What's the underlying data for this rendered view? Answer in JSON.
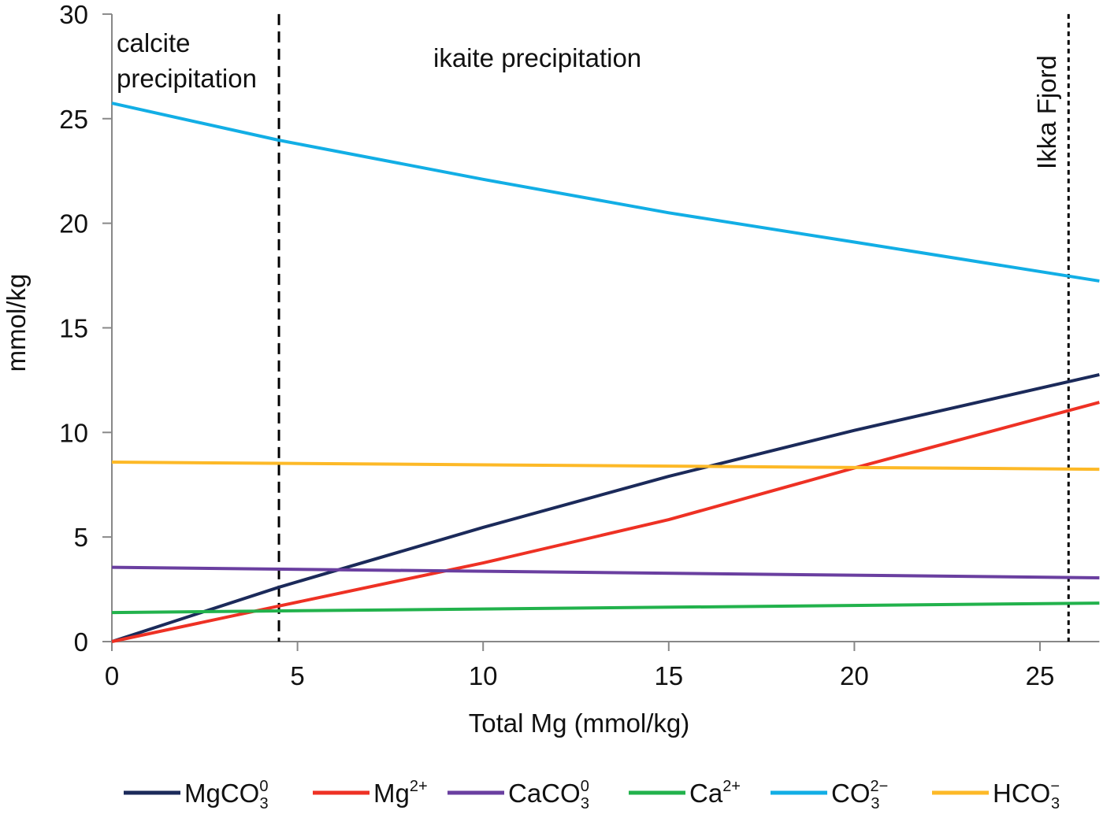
{
  "chart_data": {
    "type": "line",
    "xlabel": "Total Mg (mmol/kg)",
    "ylabel": "mmol/kg",
    "xlim": [
      0,
      26.6
    ],
    "ylim": [
      0,
      30
    ],
    "xticks": [
      0,
      5,
      10,
      15,
      20,
      25
    ],
    "yticks": [
      0,
      5,
      10,
      15,
      20,
      25,
      30
    ],
    "grid": false,
    "legend_placement": "bottom",
    "series": [
      {
        "name": "MgCO3 0",
        "label_main": "MgCO",
        "sub": "3",
        "sup": "0",
        "color": "#1b2a5a",
        "x": [
          0,
          4.5,
          10,
          15,
          20,
          26.6
        ],
        "y": [
          0,
          2.6,
          5.46,
          7.9,
          10.1,
          12.76
        ]
      },
      {
        "name": "Mg2+",
        "label_main": "Mg",
        "sub": "",
        "sup": "2+",
        "color": "#ee3124",
        "x": [
          0,
          4.5,
          10,
          15,
          20,
          26.6
        ],
        "y": [
          0,
          1.7,
          3.76,
          5.83,
          8.3,
          11.44
        ]
      },
      {
        "name": "CaCO3 0",
        "label_main": "CaCO",
        "sub": "3",
        "sup": "0",
        "color": "#6a3fa0",
        "x": [
          0,
          26.6
        ],
        "y": [
          3.55,
          3.05
        ]
      },
      {
        "name": "Ca2+",
        "label_main": "Ca",
        "sub": "",
        "sup": "2+",
        "color": "#22b24c",
        "x": [
          0,
          26.6
        ],
        "y": [
          1.39,
          1.84
        ]
      },
      {
        "name": "CO3 2-",
        "label_main": "CO",
        "sub": "3",
        "sup": "2−",
        "color": "#12aee5",
        "x": [
          0,
          4.5,
          10,
          15,
          20,
          26.6
        ],
        "y": [
          25.74,
          23.97,
          22.1,
          20.5,
          19.1,
          17.24
        ]
      },
      {
        "name": "HCO3-",
        "label_main": "HCO",
        "sub": "3",
        "sup": "−",
        "color": "#fdb927",
        "x": [
          0,
          26.6
        ],
        "y": [
          8.58,
          8.24
        ]
      }
    ],
    "vlines": [
      {
        "x": 4.5,
        "style": "dashed"
      },
      {
        "x": 25.77,
        "style": "dotted",
        "label": "Ikka Fjord"
      }
    ],
    "annotations": [
      {
        "lines": [
          "calcite",
          "precipitation"
        ]
      },
      {
        "lines": [
          "ikaite precipitation"
        ]
      }
    ]
  }
}
